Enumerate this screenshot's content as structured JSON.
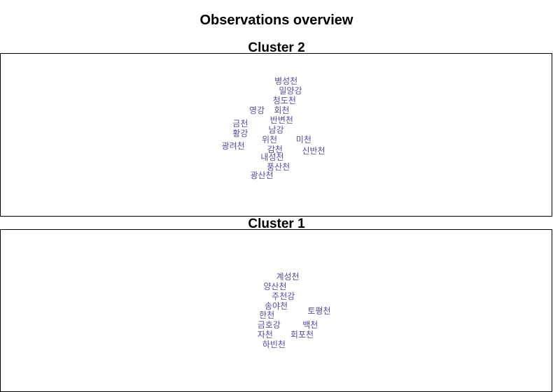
{
  "title": "Observations overview",
  "chart_data": [
    {
      "type": "scatter",
      "title": "Cluster 2",
      "xlim": [
        0,
        100
      ],
      "ylim": [
        0,
        100
      ],
      "label_color": "#5b4a9b",
      "points": [
        {
          "label": "병성천",
          "x": 51.8,
          "y": 83.0
        },
        {
          "label": "밀양강",
          "x": 52.6,
          "y": 77.0
        },
        {
          "label": "청도천",
          "x": 51.5,
          "y": 71.0
        },
        {
          "label": "영강",
          "x": 46.5,
          "y": 65.0
        },
        {
          "label": "회천",
          "x": 51.0,
          "y": 65.0
        },
        {
          "label": "반변천",
          "x": 51.0,
          "y": 59.0
        },
        {
          "label": "금천",
          "x": 43.5,
          "y": 57.0
        },
        {
          "label": "남강",
          "x": 50.0,
          "y": 53.0
        },
        {
          "label": "황강",
          "x": 43.5,
          "y": 51.0
        },
        {
          "label": "위천",
          "x": 48.8,
          "y": 47.0
        },
        {
          "label": "미천",
          "x": 55.0,
          "y": 47.0
        },
        {
          "label": "광려천",
          "x": 42.2,
          "y": 43.0
        },
        {
          "label": "감천",
          "x": 49.8,
          "y": 41.0
        },
        {
          "label": "신반천",
          "x": 56.8,
          "y": 40.0
        },
        {
          "label": "내성천",
          "x": 49.3,
          "y": 36.0
        },
        {
          "label": "풍산천",
          "x": 50.4,
          "y": 30.0
        },
        {
          "label": "광산천",
          "x": 47.4,
          "y": 25.0
        }
      ]
    },
    {
      "type": "scatter",
      "title": "Cluster 1",
      "xlim": [
        0,
        100
      ],
      "ylim": [
        0,
        100
      ],
      "label_color": "#5b4a9b",
      "points": [
        {
          "label": "계성천",
          "x": 52.1,
          "y": 71.0
        },
        {
          "label": "양산천",
          "x": 49.8,
          "y": 65.0
        },
        {
          "label": "주천강",
          "x": 51.3,
          "y": 59.0
        },
        {
          "label": "송야천",
          "x": 50.0,
          "y": 53.0
        },
        {
          "label": "토평천",
          "x": 57.8,
          "y": 50.0
        },
        {
          "label": "한천",
          "x": 48.3,
          "y": 47.0
        },
        {
          "label": "금호강",
          "x": 48.7,
          "y": 41.0
        },
        {
          "label": "백천",
          "x": 56.2,
          "y": 41.0
        },
        {
          "label": "자천",
          "x": 48.0,
          "y": 35.0
        },
        {
          "label": "회포천",
          "x": 54.7,
          "y": 35.0
        },
        {
          "label": "하빈천",
          "x": 49.6,
          "y": 29.0
        }
      ]
    }
  ]
}
